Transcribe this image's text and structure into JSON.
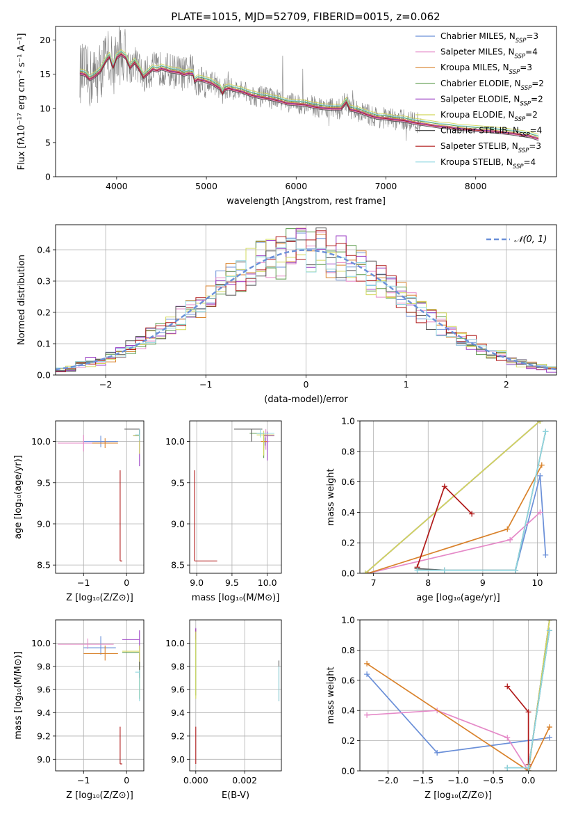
{
  "title": "PLATE=1015, MJD=52709, FIBERID=0015, z=0.062",
  "colors": {
    "Chabrier MILES": "#6a8fd8",
    "Salpeter MILES": "#e58ac8",
    "Kroupa MILES": "#d9822b",
    "Chabrier ELODIE": "#5a9a4a",
    "Salpeter ELODIE": "#9b3fc4",
    "Kroupa ELODIE": "#d2d85c",
    "Chabrier STELIB": "#555555",
    "Salpeter STELIB": "#b01a1a",
    "Kroupa STELIB": "#8fd7e0",
    "data": "#808080",
    "gaussian": "#6a8fd8"
  },
  "legend_entries": [
    {
      "label": "Chabrier MILES, N",
      "sub": "SSP",
      "tail": "=3",
      "color_key": "Chabrier MILES"
    },
    {
      "label": "Salpeter MILES, N",
      "sub": "SSP",
      "tail": "=4",
      "color_key": "Salpeter MILES"
    },
    {
      "label": "Kroupa MILES, N",
      "sub": "SSP",
      "tail": "=3",
      "color_key": "Kroupa MILES"
    },
    {
      "label": "Chabrier ELODIE, N",
      "sub": "SSP",
      "tail": "=2",
      "color_key": "Chabrier ELODIE"
    },
    {
      "label": "Salpeter ELODIE, N",
      "sub": "SSP",
      "tail": "=2",
      "color_key": "Salpeter ELODIE"
    },
    {
      "label": "Kroupa ELODIE, N",
      "sub": "SSP",
      "tail": "=2",
      "color_key": "Kroupa ELODIE"
    },
    {
      "label": "Chabrier STELIB, N",
      "sub": "SSP",
      "tail": "=4",
      "color_key": "Chabrier STELIB"
    },
    {
      "label": "Salpeter STELIB, N",
      "sub": "SSP",
      "tail": "=3",
      "color_key": "Salpeter STELIB"
    },
    {
      "label": "Kroupa STELIB, N",
      "sub": "SSP",
      "tail": "=4",
      "color_key": "Kroupa STELIB"
    }
  ],
  "chart_data": [
    {
      "id": "spectrum",
      "type": "line",
      "xlabel": "wavelength [Angstrom, rest frame]",
      "ylabel": "Flux [fλ10⁻¹⁷ erg cm⁻² s⁻¹ A⁻¹]",
      "xlim": [
        3320,
        8900
      ],
      "ylim": [
        0,
        22
      ],
      "xticks": [
        4000,
        5000,
        6000,
        7000,
        8000
      ],
      "yticks": [
        0,
        5,
        10,
        15,
        20
      ],
      "model_x": [
        3590,
        3650,
        3700,
        3760,
        3820,
        3880,
        3920,
        3960,
        4000,
        4050,
        4100,
        4150,
        4200,
        4250,
        4300,
        4350,
        4400,
        4450,
        4500,
        4550,
        4600,
        4650,
        4700,
        4750,
        4800,
        4850,
        4870,
        4900,
        4950,
        5000,
        5050,
        5100,
        5150,
        5180,
        5200,
        5250,
        5300,
        5400,
        5500,
        5600,
        5700,
        5800,
        5900,
        6000,
        6100,
        6200,
        6300,
        6400,
        6500,
        6560,
        6600,
        6700,
        6800,
        6900,
        7000,
        7100,
        7200,
        7300,
        7400,
        7500,
        7600,
        7700,
        7800,
        7900,
        8000,
        8200,
        8400,
        8600,
        8700
      ],
      "model_y": [
        15.2,
        15.0,
        14.3,
        14.8,
        15.5,
        17.0,
        17.6,
        16.0,
        17.5,
        18.0,
        17.5,
        16.0,
        16.8,
        15.8,
        14.6,
        15.2,
        15.8,
        15.6,
        15.9,
        15.7,
        15.5,
        15.4,
        15.3,
        15.0,
        15.2,
        15.1,
        14.0,
        14.3,
        14.2,
        14.0,
        13.8,
        13.4,
        13.0,
        12.2,
        12.8,
        13.0,
        12.8,
        12.5,
        12.0,
        11.7,
        11.5,
        11.2,
        10.8,
        10.7,
        10.6,
        10.3,
        10.1,
        10.0,
        10.0,
        11.0,
        9.9,
        9.6,
        9.1,
        8.7,
        8.6,
        8.4,
        8.3,
        8.0,
        7.8,
        7.6,
        7.4,
        7.3,
        7.1,
        7.0,
        6.9,
        6.7,
        6.4,
        6.0,
        5.6
      ],
      "model_offsets": {
        "Chabrier MILES": 0.0,
        "Salpeter MILES": -0.2,
        "Kroupa MILES": 0.1,
        "Chabrier ELODIE": 0.3,
        "Salpeter ELODIE": 0.0,
        "Kroupa ELODIE": 0.6,
        "Chabrier STELIB": -0.3,
        "Salpeter STELIB": -0.1,
        "Kroupa STELIB": 0.4
      }
    },
    {
      "id": "residuals",
      "type": "histogram",
      "xlabel": "(data-model)/error",
      "ylabel": "Normed distribution",
      "xlim": [
        -2.5,
        2.5
      ],
      "ylim": [
        0,
        0.48
      ],
      "xticks": [
        -2,
        -1,
        0,
        1,
        2
      ],
      "yticks": [
        0,
        0.1,
        0.2,
        0.3,
        0.4
      ],
      "bin_width": 0.1,
      "legend": "𝒩(0, 1)",
      "gaussian": {
        "mean": 0,
        "sigma": 1
      }
    },
    {
      "id": "age-vs-Z",
      "type": "scatter",
      "xlabel": "Z [log₁₀(Z/Z⊙)]",
      "ylabel": "age  [log₁₀(age/yr)]",
      "xlim": [
        -1.65,
        0.4
      ],
      "ylim": [
        8.4,
        10.25
      ],
      "xticks": [
        -1,
        0
      ],
      "yticks": [
        8.5,
        9.0,
        9.5,
        10.0
      ],
      "points": [
        {
          "model": "Chabrier MILES",
          "x": -0.6,
          "y": 10.0,
          "xerr": [
            0.4,
            0.4
          ],
          "yerr": [
            0.07,
            0.07
          ]
        },
        {
          "model": "Salpeter MILES",
          "x": -1.0,
          "y": 9.98,
          "xerr": [
            0.6,
            0.6
          ],
          "yerr": [
            0.1,
            0.1
          ]
        },
        {
          "model": "Kroupa MILES",
          "x": -0.5,
          "y": 9.98,
          "xerr": [
            0.3,
            0.3
          ],
          "yerr": [
            0.06,
            0.06
          ]
        },
        {
          "model": "Chabrier ELODIE",
          "x": 0.3,
          "y": 10.07,
          "xerr": [
            0.15,
            0.0
          ],
          "yerr": [
            0.07,
            0.07
          ]
        },
        {
          "model": "Salpeter ELODIE",
          "x": 0.3,
          "y": 10.07,
          "xerr": [
            0.15,
            0.0
          ],
          "yerr": [
            0.37,
            0.07
          ]
        },
        {
          "model": "Kroupa ELODIE",
          "x": 0.3,
          "y": 10.07,
          "xerr": [
            0.15,
            0.0
          ],
          "yerr": [
            0.22,
            0.07
          ]
        },
        {
          "model": "Chabrier STELIB",
          "x": 0.3,
          "y": 10.15,
          "xerr": [
            0.35,
            0.0
          ],
          "yerr": [
            0.08,
            0.0
          ]
        },
        {
          "model": "Salpeter STELIB",
          "x": -0.15,
          "y": 8.55,
          "xerr": [
            0.0,
            0.05
          ],
          "yerr": [
            0.0,
            1.1
          ]
        },
        {
          "model": "Kroupa STELIB",
          "x": 0.3,
          "y": 10.08,
          "xerr": [
            0.1,
            0.0
          ],
          "yerr": [
            0.07,
            0.07
          ]
        }
      ]
    },
    {
      "id": "age-vs-mass",
      "type": "scatter",
      "xlabel": "mass [log₁₀(M/M⊙)]",
      "ylabel": "",
      "xlim": [
        8.9,
        10.2
      ],
      "ylim": [
        8.4,
        10.25
      ],
      "xticks": [
        9.0,
        9.5,
        10.0
      ],
      "yticks": [
        8.5,
        9.0,
        9.5,
        10.0
      ],
      "points": [
        {
          "model": "Chabrier MILES",
          "x": 9.97,
          "y": 10.0,
          "xerr": [
            0.03,
            0.05
          ],
          "yerr": [
            0.05,
            0.05
          ]
        },
        {
          "model": "Salpeter MILES",
          "x": 9.98,
          "y": 10.0,
          "xerr": [
            0.04,
            0.05
          ],
          "yerr": [
            0.1,
            0.15
          ]
        },
        {
          "model": "Kroupa MILES",
          "x": 9.95,
          "y": 10.0,
          "xerr": [
            0.04,
            0.05
          ],
          "yerr": [
            0.08,
            0.08
          ]
        },
        {
          "model": "Chabrier ELODIE",
          "x": 9.95,
          "y": 10.1,
          "xerr": [
            0.2,
            0.0
          ],
          "yerr": [
            0.3,
            0.0
          ]
        },
        {
          "model": "Salpeter ELODIE",
          "x": 10.0,
          "y": 10.07,
          "xerr": [
            0.05,
            0.1
          ],
          "yerr": [
            0.3,
            0.05
          ]
        },
        {
          "model": "Kroupa ELODIE",
          "x": 9.95,
          "y": 10.08,
          "xerr": [
            0.1,
            0.15
          ],
          "yerr": [
            0.25,
            0.05
          ]
        },
        {
          "model": "Chabrier STELIB",
          "x": 9.78,
          "y": 10.15,
          "xerr": [
            0.25,
            0.15
          ],
          "yerr": [
            0.15,
            0.0
          ]
        },
        {
          "model": "Salpeter STELIB",
          "x": 8.97,
          "y": 8.55,
          "xerr": [
            0.0,
            0.32
          ],
          "yerr": [
            0.0,
            1.1
          ]
        },
        {
          "model": "Kroupa STELIB",
          "x": 9.9,
          "y": 10.1,
          "xerr": [
            0.05,
            0.2
          ],
          "yerr": [
            0.05,
            0.05
          ]
        }
      ]
    },
    {
      "id": "weight-vs-age",
      "type": "line",
      "xlabel": "age  [log₁₀(age/yr)]",
      "ylabel": "mass weight",
      "xlim": [
        6.75,
        10.35
      ],
      "ylim": [
        0,
        1
      ],
      "xticks": [
        7,
        8,
        9,
        10
      ],
      "yticks": [
        0.0,
        0.2,
        0.4,
        0.6,
        0.8,
        1.0
      ],
      "series": [
        {
          "model": "Chabrier MILES",
          "x": [
            9.6,
            10.05,
            10.15
          ],
          "y": [
            0.02,
            0.64,
            0.12
          ]
        },
        {
          "model": "Salpeter MILES",
          "x": [
            6.9,
            9.5,
            10.05
          ],
          "y": [
            0.0,
            0.22,
            0.4
          ]
        },
        {
          "model": "Kroupa MILES",
          "x": [
            6.9,
            9.45,
            10.08
          ],
          "y": [
            0.0,
            0.29,
            0.71
          ]
        },
        {
          "model": "Chabrier ELODIE",
          "x": [
            6.85,
            10.05
          ],
          "y": [
            0.0,
            1.0
          ]
        },
        {
          "model": "Salpeter ELODIE",
          "x": [
            6.85,
            10.05
          ],
          "y": [
            0.0,
            1.0
          ]
        },
        {
          "model": "Kroupa ELODIE",
          "x": [
            6.85,
            10.05
          ],
          "y": [
            0.0,
            1.0
          ]
        },
        {
          "model": "Chabrier STELIB",
          "x": [
            7.8,
            8.3,
            9.6,
            10.15
          ],
          "y": [
            0.03,
            0.02,
            0.02,
            0.93
          ]
        },
        {
          "model": "Salpeter STELIB",
          "x": [
            7.8,
            8.3,
            8.8
          ],
          "y": [
            0.04,
            0.57,
            0.39
          ]
        },
        {
          "model": "Kroupa STELIB",
          "x": [
            7.8,
            8.3,
            9.6,
            10.15
          ],
          "y": [
            0.02,
            0.02,
            0.02,
            0.93
          ]
        }
      ]
    },
    {
      "id": "mass-vs-Z",
      "type": "scatter",
      "xlabel": "Z [log₁₀(Z/Z⊙)]",
      "ylabel": "mass [log₁₀(M/M⊙)]",
      "xlim": [
        -1.65,
        0.4
      ],
      "ylim": [
        8.9,
        10.2
      ],
      "xticks": [
        -1,
        0
      ],
      "yticks": [
        9.0,
        9.2,
        9.4,
        9.6,
        9.8,
        10.0
      ],
      "points": [
        {
          "model": "Chabrier MILES",
          "x": -0.6,
          "y": 9.96,
          "xerr": [
            0.4,
            0.35
          ],
          "yerr": [
            0.06,
            0.1
          ]
        },
        {
          "model": "Salpeter MILES",
          "x": -0.9,
          "y": 9.99,
          "xerr": [
            0.7,
            0.6
          ],
          "yerr": [
            0.04,
            0.05
          ]
        },
        {
          "model": "Kroupa MILES",
          "x": -0.5,
          "y": 9.91,
          "xerr": [
            0.5,
            0.3
          ],
          "yerr": [
            0.06,
            0.07
          ]
        },
        {
          "model": "Chabrier ELODIE",
          "x": 0.3,
          "y": 9.92,
          "xerr": [
            0.4,
            0.0
          ],
          "yerr": [
            0.4,
            0.0
          ]
        },
        {
          "model": "Salpeter ELODIE",
          "x": 0.3,
          "y": 10.03,
          "xerr": [
            0.4,
            0.0
          ],
          "yerr": [
            0.2,
            0.08
          ]
        },
        {
          "model": "Kroupa ELODIE",
          "x": 0.3,
          "y": 9.93,
          "xerr": [
            0.4,
            0.0
          ],
          "yerr": [
            0.4,
            0.05
          ]
        },
        {
          "model": "Chabrier STELIB",
          "x": 0.3,
          "y": 9.78,
          "xerr": [
            0.0,
            0.0
          ],
          "yerr": [
            0.08,
            0.06
          ]
        },
        {
          "model": "Salpeter STELIB",
          "x": -0.15,
          "y": 8.96,
          "xerr": [
            0.0,
            0.05
          ],
          "yerr": [
            0.0,
            0.32
          ]
        },
        {
          "model": "Kroupa STELIB",
          "x": 0.3,
          "y": 9.75,
          "xerr": [
            0.1,
            0.0
          ],
          "yerr": [
            0.25,
            0.02
          ]
        }
      ]
    },
    {
      "id": "mass-vs-EBV",
      "type": "scatter",
      "xlabel": "E(B-V)",
      "ylabel": "",
      "xlim": [
        -0.00025,
        0.0035
      ],
      "ylim": [
        8.9,
        10.2
      ],
      "xticks": [
        0.0,
        0.002
      ],
      "xtick_labels": [
        "0.000",
        "0.002"
      ],
      "yticks": [
        9.0,
        9.2,
        9.4,
        9.6,
        9.8,
        10.0
      ],
      "points": [
        {
          "model": "Chabrier MILES",
          "x": 0.0,
          "y": 10.08,
          "yerr": [
            0.05,
            0.04
          ]
        },
        {
          "model": "Salpeter MILES",
          "x": 0.0,
          "y": 10.08,
          "yerr": [
            0.05,
            0.04
          ]
        },
        {
          "model": "Kroupa MILES",
          "x": 0.0,
          "y": 10.08,
          "yerr": [
            0.05,
            0.04
          ]
        },
        {
          "model": "Chabrier ELODIE",
          "x": 0.0,
          "y": 9.9,
          "yerr": [
            0.35,
            0.2
          ]
        },
        {
          "model": "Salpeter ELODIE",
          "x": 0.0,
          "y": 10.08,
          "yerr": [
            0.05,
            0.05
          ]
        },
        {
          "model": "Kroupa ELODIE",
          "x": 0.0,
          "y": 9.9,
          "yerr": [
            0.38,
            0.2
          ]
        },
        {
          "model": "Chabrier STELIB",
          "x": 0.0034,
          "y": 9.75,
          "yerr": [
            0.25,
            0.1
          ]
        },
        {
          "model": "Salpeter STELIB",
          "x": 0.0,
          "y": 8.96,
          "yerr": [
            0.0,
            0.32
          ]
        },
        {
          "model": "Kroupa STELIB",
          "x": 0.0034,
          "y": 9.7,
          "yerr": [
            0.2,
            0.1
          ]
        }
      ]
    },
    {
      "id": "weight-vs-Z",
      "type": "line",
      "xlabel": "Z [log₁₀(Z/Z⊙)]",
      "ylabel": "mass weight",
      "xlim": [
        -2.4,
        0.4
      ],
      "ylim": [
        0,
        1
      ],
      "xticks": [
        -2.0,
        -1.5,
        -1.0,
        -0.5,
        0.0
      ],
      "yticks": [
        0.0,
        0.2,
        0.4,
        0.6,
        0.8,
        1.0
      ],
      "series": [
        {
          "model": "Chabrier MILES",
          "x": [
            -2.3,
            -1.3,
            0.3
          ],
          "y": [
            0.64,
            0.12,
            0.22
          ]
        },
        {
          "model": "Salpeter MILES",
          "x": [
            -2.3,
            -1.3,
            -0.3,
            0.0
          ],
          "y": [
            0.37,
            0.4,
            0.22,
            0.0
          ]
        },
        {
          "model": "Kroupa MILES",
          "x": [
            -2.3,
            0.0,
            0.3
          ],
          "y": [
            0.71,
            0.0,
            0.29
          ]
        },
        {
          "model": "Chabrier ELODIE",
          "x": [
            0.0,
            0.3
          ],
          "y": [
            0.0,
            1.0
          ]
        },
        {
          "model": "Salpeter ELODIE",
          "x": [
            0.0,
            0.3
          ],
          "y": [
            0.0,
            1.0
          ]
        },
        {
          "model": "Kroupa ELODIE",
          "x": [
            0.0,
            0.3
          ],
          "y": [
            0.0,
            1.0
          ]
        },
        {
          "model": "Chabrier STELIB",
          "x": [
            -0.3,
            0.0,
            0.3
          ],
          "y": [
            0.02,
            0.02,
            0.93
          ]
        },
        {
          "model": "Salpeter STELIB",
          "x": [
            -0.3,
            0.0,
            0.0
          ],
          "y": [
            0.56,
            0.39,
            0.04
          ]
        },
        {
          "model": "Kroupa STELIB",
          "x": [
            -0.3,
            0.0,
            0.3
          ],
          "y": [
            0.02,
            0.02,
            0.93
          ]
        }
      ]
    }
  ]
}
